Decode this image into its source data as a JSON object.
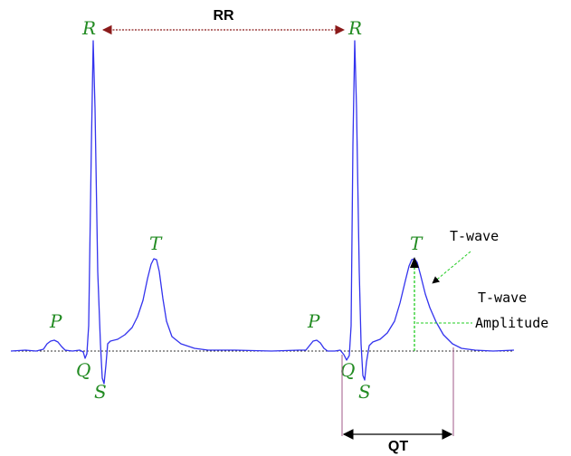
{
  "colors": {
    "ecg_trace": "#3333ee",
    "wave_labels": "#228b22",
    "baseline": "#333333",
    "rr_arrow": "#8b1a1a",
    "qt_bracket": "#a05a8a",
    "amplitude_marker": "#22cc22",
    "annotation_text": "#000000"
  },
  "labels": {
    "r1": "R",
    "r2": "R",
    "p1": "P",
    "p2": "P",
    "q1": "Q",
    "q2": "Q",
    "s1": "S",
    "s2": "S",
    "t1": "T",
    "t2": "T",
    "rr": "RR",
    "qt": "QT",
    "twave": "T-wave",
    "twave_amp_line1": "T-wave",
    "twave_amp_line2": "Amplitude"
  },
  "icons": {
    "arrowheads": "triangle-arrowhead"
  }
}
